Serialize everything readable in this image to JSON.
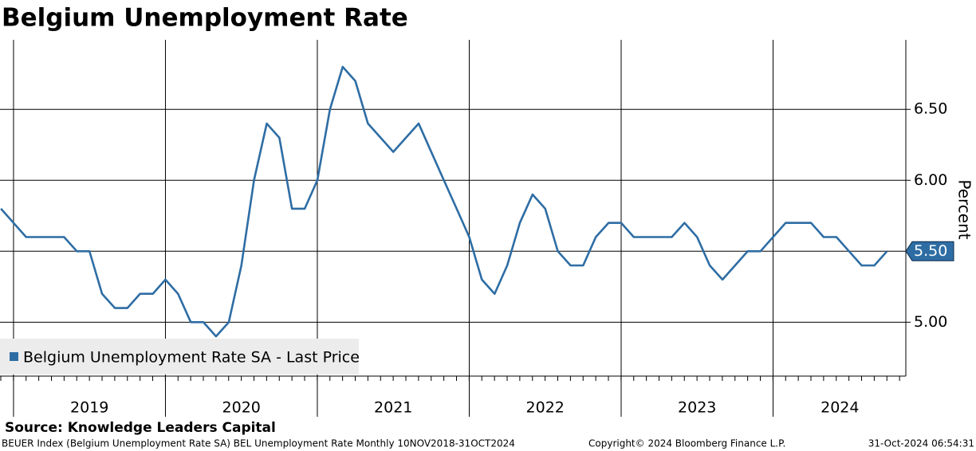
{
  "chart_data": {
    "type": "line",
    "title": "Belgium Unemployment Rate",
    "y_axis_label": "Percent",
    "source": "Source: Knowledge Leaders Capital",
    "footer_left": "BEUER Index (Belgium Unemployment Rate SA) BEL Unemployment Rate  Monthly 10NOV2018-31OCT2024",
    "footer_center": "Copyright© 2024 Bloomberg Finance L.P.",
    "footer_right": "31-Oct-2024 06:54:31",
    "xlim": [
      2018.911,
      2024.874
    ],
    "xgrid": [
      2019,
      2020,
      2021,
      2022,
      2023,
      2024
    ],
    "xticks": [
      {
        "value": 2019.5,
        "label": "2019"
      },
      {
        "value": 2020.5,
        "label": "2020"
      },
      {
        "value": 2021.5,
        "label": "2021"
      },
      {
        "value": 2022.5,
        "label": "2022"
      },
      {
        "value": 2023.5,
        "label": "2023"
      },
      {
        "value": 2024.44,
        "label": "2024"
      }
    ],
    "ylim": [
      4.62,
      6.99
    ],
    "yticks": [
      {
        "value": 5,
        "label": "5.00"
      },
      {
        "value": 5.5,
        "label": "5.50"
      },
      {
        "value": 6,
        "label": "6.00"
      },
      {
        "value": 6.5,
        "label": "6.50"
      }
    ],
    "grid": true,
    "legend": "bottom-left",
    "x": [
      2018.917,
      2019,
      2019.083,
      2019.167,
      2019.25,
      2019.333,
      2019.417,
      2019.5,
      2019.583,
      2019.667,
      2019.75,
      2019.833,
      2019.917,
      2020,
      2020.083,
      2020.167,
      2020.25,
      2020.333,
      2020.417,
      2020.5,
      2020.583,
      2020.667,
      2020.75,
      2020.833,
      2020.917,
      2021,
      2021.083,
      2021.167,
      2021.25,
      2021.333,
      2021.417,
      2021.5,
      2021.583,
      2021.667,
      2021.75,
      2021.833,
      2021.917,
      2022,
      2022.083,
      2022.167,
      2022.25,
      2022.333,
      2022.417,
      2022.5,
      2022.583,
      2022.667,
      2022.75,
      2022.833,
      2022.917,
      2023,
      2023.083,
      2023.167,
      2023.25,
      2023.333,
      2023.417,
      2023.5,
      2023.583,
      2023.667,
      2023.75,
      2023.833,
      2023.917,
      2024,
      2024.083,
      2024.167,
      2024.25,
      2024.333,
      2024.417,
      2024.5,
      2024.583,
      2024.667,
      2024.75
    ],
    "series": [
      {
        "name": "Belgium Unemployment Rate SA - Last Price",
        "color": "#2e6da4",
        "values": [
          5.8,
          5.7,
          5.6,
          5.6,
          5.6,
          5.6,
          5.5,
          5.5,
          5.2,
          5.1,
          5.1,
          5.2,
          5.2,
          5.3,
          5.2,
          5.0,
          5.0,
          4.9,
          5.0,
          5.4,
          6.0,
          6.4,
          6.3,
          5.8,
          5.8,
          6.0,
          6.5,
          6.8,
          6.7,
          6.4,
          6.3,
          6.2,
          6.3,
          6.4,
          6.2,
          6.0,
          5.8,
          5.6,
          5.3,
          5.2,
          5.4,
          5.7,
          5.9,
          5.8,
          5.5,
          5.4,
          5.4,
          5.6,
          5.7,
          5.7,
          5.6,
          5.6,
          5.6,
          5.6,
          5.7,
          5.6,
          5.4,
          5.3,
          5.4,
          5.5,
          5.5,
          5.6,
          5.7,
          5.7,
          5.7,
          5.6,
          5.6,
          5.5,
          5.4,
          5.4,
          5.5
        ]
      }
    ],
    "last_value_label": {
      "value": 5.5,
      "label": "5.50"
    }
  }
}
